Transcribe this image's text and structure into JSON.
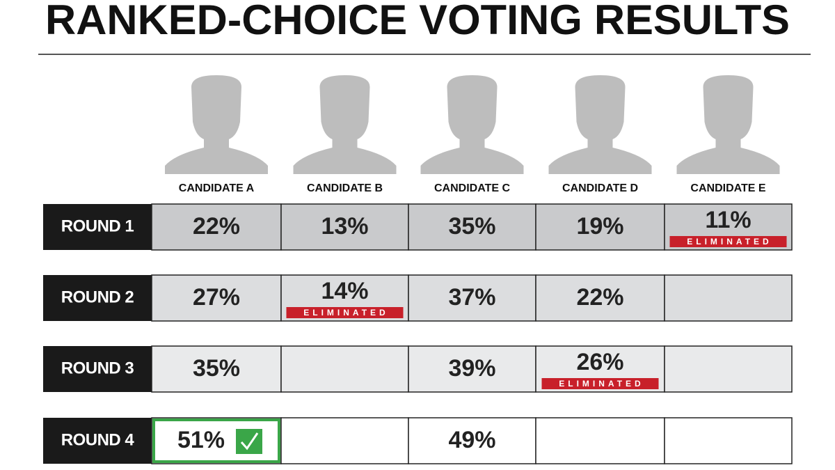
{
  "header": {
    "title": "RANKED-CHOICE VOTING RESULTS"
  },
  "table": {
    "candidates": [
      "CANDIDATE A",
      "CANDIDATE B",
      "CANDIDATE C",
      "CANDIDATE D",
      "CANDIDATE E"
    ],
    "rounds": [
      {
        "label": "ROUND 1",
        "cells": [
          {
            "value": "22%"
          },
          {
            "value": "13%"
          },
          {
            "value": "35%"
          },
          {
            "value": "19%"
          },
          {
            "value": "11%",
            "badge": "ELIMINATED"
          }
        ]
      },
      {
        "label": "ROUND 2",
        "cells": [
          {
            "value": "27%"
          },
          {
            "value": "14%",
            "badge": "ELIMINATED"
          },
          {
            "value": "37%"
          },
          {
            "value": "22%"
          },
          null
        ]
      },
      {
        "label": "ROUND 3",
        "cells": [
          {
            "value": "35%"
          },
          null,
          {
            "value": "39%"
          },
          {
            "value": "26%",
            "badge": "ELIMINATED"
          },
          null
        ]
      },
      {
        "label": "ROUND 4",
        "cells": [
          {
            "value": "51%",
            "winner": true
          },
          null,
          {
            "value": "49%"
          },
          null,
          null
        ]
      }
    ]
  }
}
